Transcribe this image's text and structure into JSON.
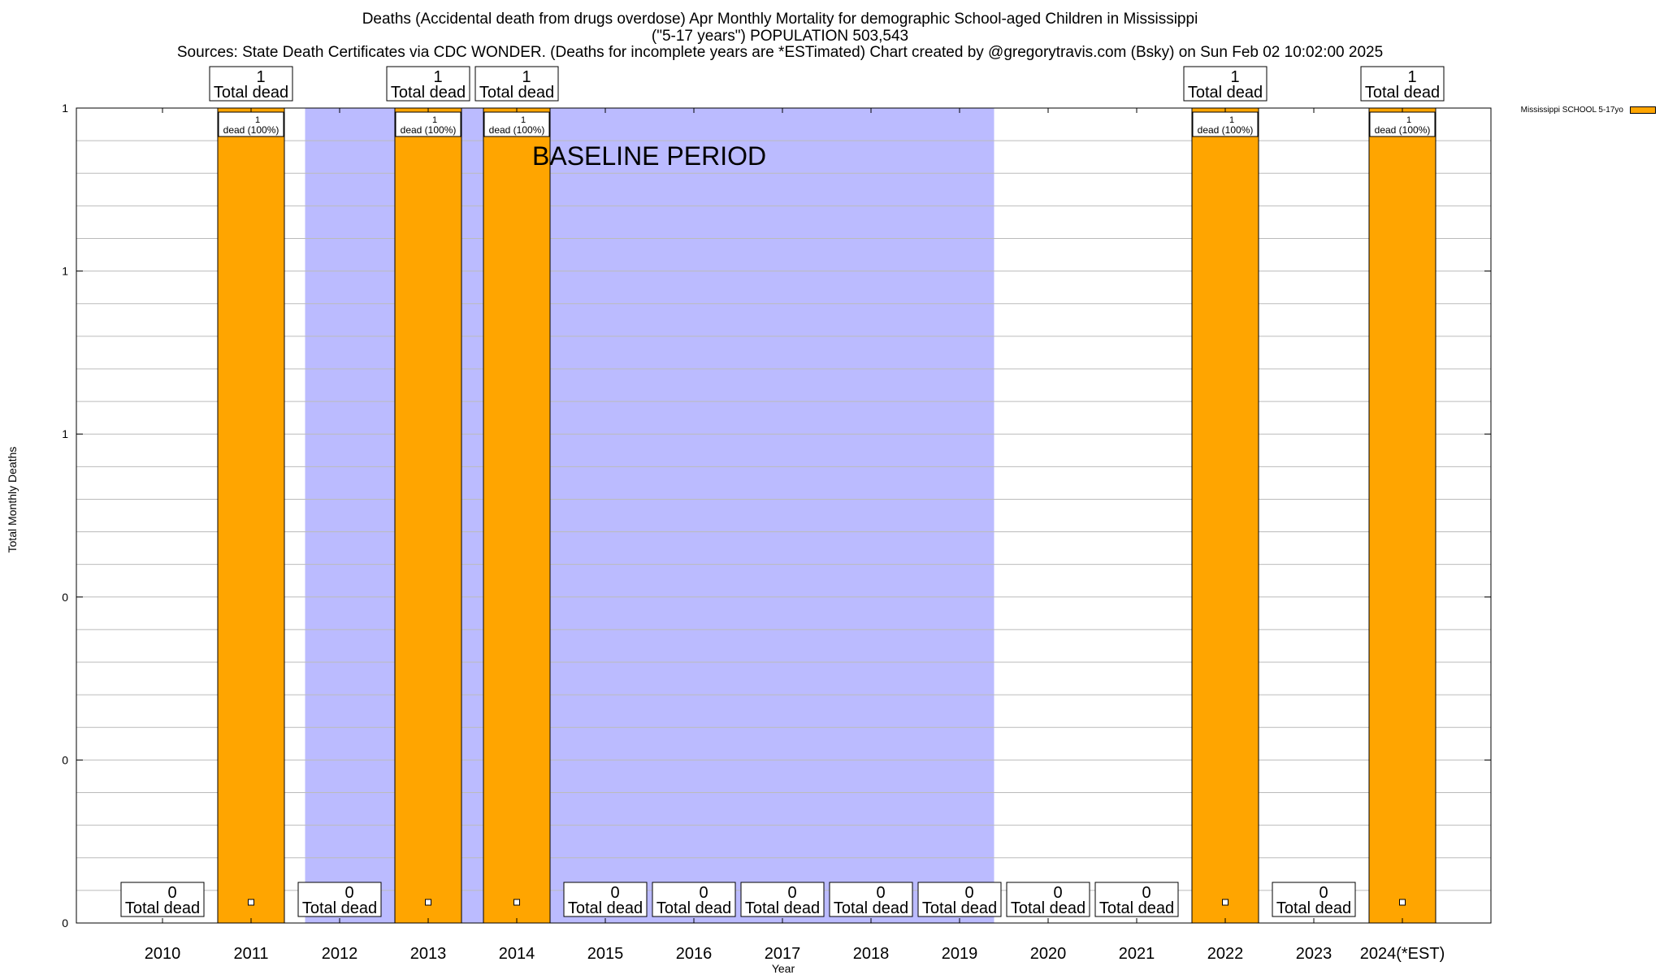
{
  "header": {
    "line1": "Deaths (Accidental death from drugs overdose) Apr Monthly Mortality for demographic School-aged Children in Mississippi",
    "line2": "(\"5-17 years\") POPULATION 503,543",
    "line3": "Sources: State Death Certificates via CDC WONDER. (Deaths for incomplete years are *ESTimated)                Chart created by @gregorytravis.com (Bsky) on Sun Feb 02 10:02:00 2025"
  },
  "chart_data": {
    "type": "bar",
    "xlabel": "Year",
    "ylabel": "Total Monthly Deaths",
    "ylim": [
      0,
      1
    ],
    "ytick_labels": [
      "0",
      "0",
      "0",
      "1",
      "1",
      "1"
    ],
    "categories": [
      "2010",
      "2011",
      "2012",
      "2013",
      "2014",
      "2015",
      "2016",
      "2017",
      "2018",
      "2019",
      "2020",
      "2021",
      "2022",
      "2023",
      "2024(*EST)"
    ],
    "series": [
      {
        "name": "Mississippi SCHOOL 5-17yo",
        "color": "#FFA500",
        "values": [
          0,
          1,
          0,
          1,
          1,
          0,
          0,
          0,
          0,
          0,
          0,
          0,
          1,
          0,
          1
        ]
      }
    ],
    "total_labels": [
      "0",
      "1",
      "0",
      "1",
      "1",
      "0",
      "0",
      "0",
      "0",
      "0",
      "0",
      "0",
      "1",
      "0",
      "1"
    ],
    "total_label_suffix": "Total dead",
    "bar_labels": [
      "",
      "1\ndead (100%)",
      "",
      "1\ndead (100%)",
      "1\ndead (100%)",
      "",
      "",
      "",
      "",
      "",
      "",
      "",
      "1\ndead (100%)",
      "",
      "1\ndead (100%)"
    ],
    "baseline": {
      "label": "BASELINE PERIOD",
      "color": "#BBBBFF",
      "from": "2012",
      "to": "2019"
    },
    "grid": true,
    "legend_position": "top-right"
  }
}
